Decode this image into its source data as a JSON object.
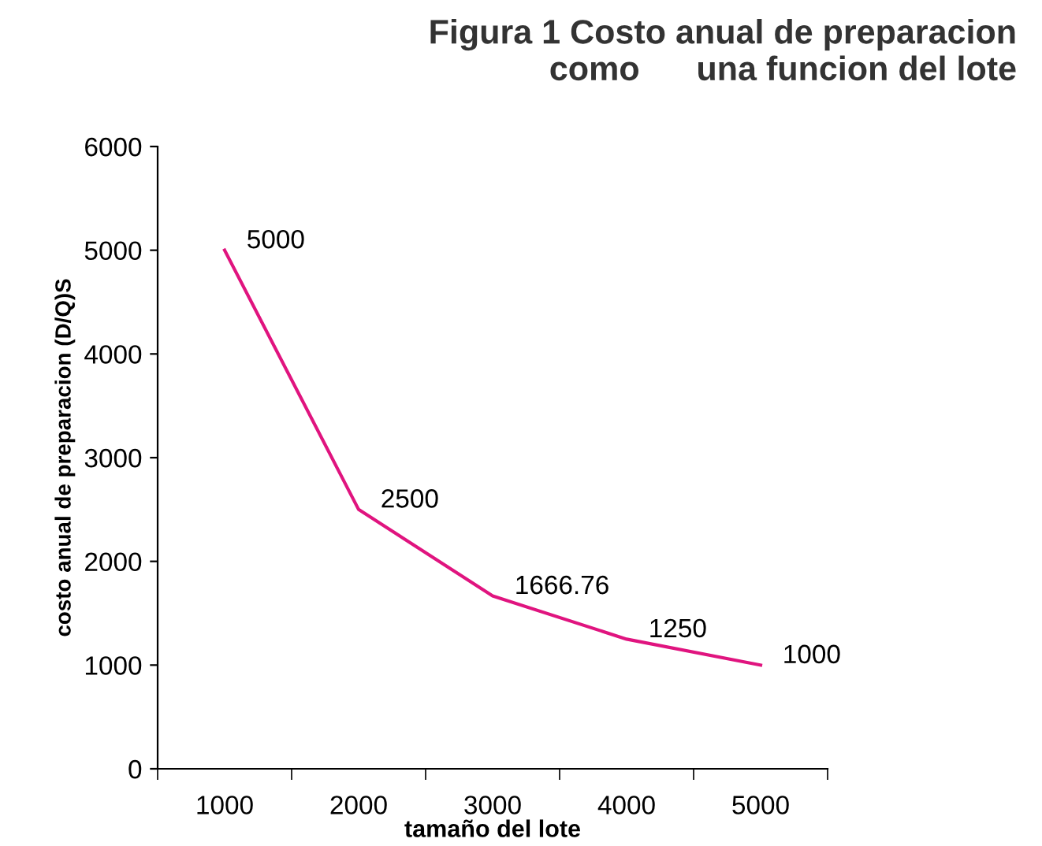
{
  "chart_data": {
    "type": "line",
    "title": "Figura 1 Costo anual de preparacion\ncomo      una funcion del lote",
    "xlabel": "tamaño del lote",
    "ylabel": "costo anual de preparacion (D/Q)S",
    "categories": [
      "1000",
      "2000",
      "3000",
      "4000",
      "5000"
    ],
    "series": [
      {
        "color": "#e0147f",
        "values": [
          5000,
          2500,
          1666.76,
          1250,
          1000
        ]
      }
    ],
    "ylim": [
      0,
      6000
    ],
    "yticks": [
      0,
      1000,
      2000,
      3000,
      4000,
      5000,
      6000
    ],
    "grid": false,
    "legend": false,
    "marker": "none",
    "line_style": "solid",
    "data_labels": true
  }
}
